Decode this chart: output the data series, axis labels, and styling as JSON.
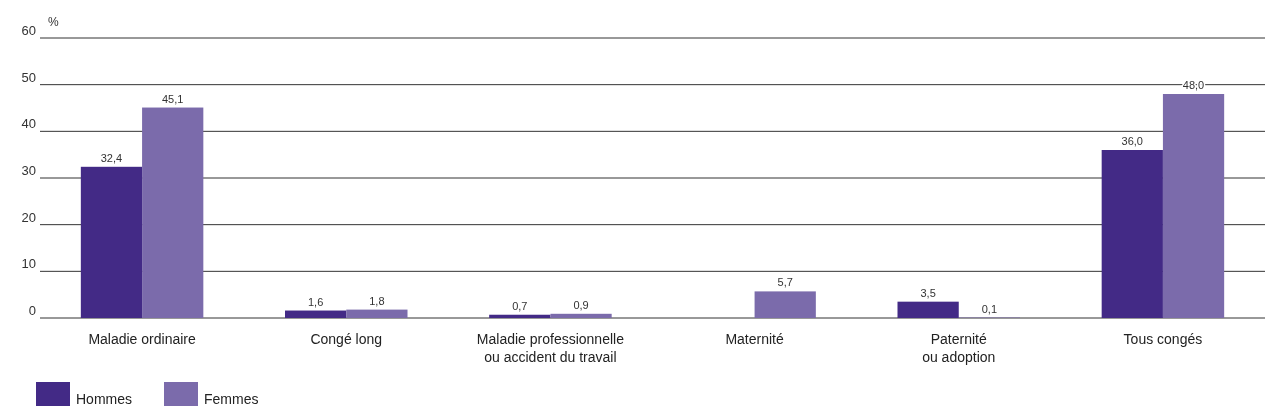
{
  "chart_data": {
    "type": "bar",
    "ylabel": "%",
    "categories": [
      "Maladie ordinaire",
      "Congé long",
      "Maladie professionnelle\nou accident du travail",
      "Maternité",
      "Paternité\nou adoption",
      "Tous congés"
    ],
    "series": [
      {
        "name": "Hommes",
        "color": "#432a86",
        "values": [
          32.4,
          1.6,
          0.7,
          null,
          3.5,
          36.0
        ],
        "value_labels": [
          "32,4",
          "1,6",
          "0,7",
          null,
          "3,5",
          "36,0"
        ]
      },
      {
        "name": "Femmes",
        "color": "#7b6bab",
        "values": [
          45.1,
          1.8,
          0.9,
          5.7,
          0.1,
          48.0
        ],
        "value_labels": [
          "45,1",
          "1,8",
          "0,9",
          "5,7",
          "0,1",
          "48,0"
        ]
      }
    ],
    "ylim": [
      0,
      60
    ],
    "yticks": [
      0,
      10,
      20,
      30,
      40,
      50,
      60
    ],
    "grid": "y",
    "legend": "bottom left"
  }
}
